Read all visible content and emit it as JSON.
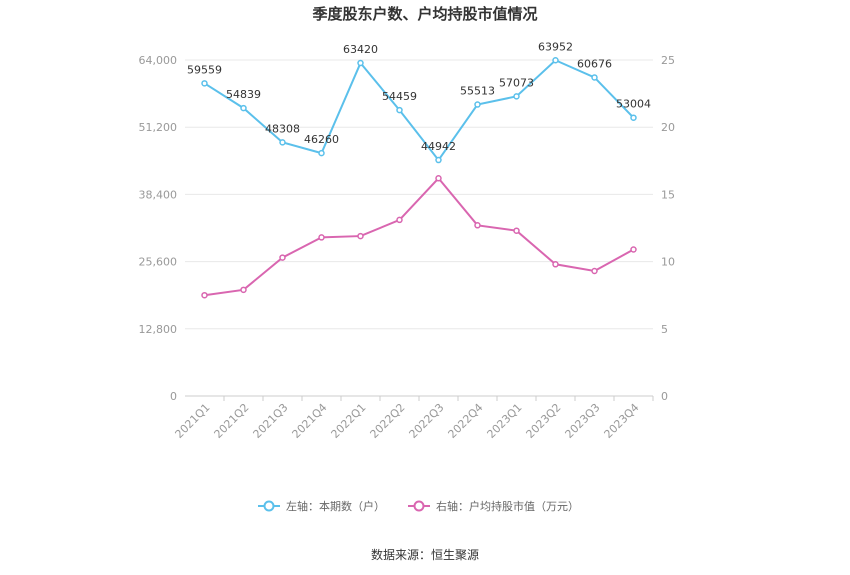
{
  "chart_data": {
    "type": "line",
    "title": "季度股东户数、户均持股市值情况",
    "categories": [
      "2021Q1",
      "2021Q2",
      "2021Q3",
      "2021Q4",
      "2022Q1",
      "2022Q2",
      "2022Q3",
      "2022Q4",
      "2023Q1",
      "2023Q2",
      "2023Q3",
      "2023Q4"
    ],
    "left_axis": {
      "ylim": [
        0,
        64000
      ],
      "ticks": [
        0,
        12800,
        25600,
        38400,
        51200,
        64000
      ],
      "tick_labels": [
        "0",
        "12,800",
        "25,600",
        "38,400",
        "51,200",
        "64,000"
      ]
    },
    "right_axis": {
      "ylim": [
        0,
        25
      ],
      "ticks": [
        0,
        5,
        10,
        15,
        20,
        25
      ],
      "tick_labels": [
        "0",
        "5",
        "10",
        "15",
        "20",
        "25"
      ]
    },
    "series": [
      {
        "name": "左轴：本期数（户）",
        "axis": "left",
        "color": "#5bc0eb",
        "values": [
          59559,
          54839,
          48308,
          46260,
          63420,
          54459,
          44942,
          55513,
          57073,
          63952,
          60676,
          53004
        ],
        "labels": [
          "59559",
          "54839",
          "48308",
          "46260",
          "63420",
          "54459",
          "44942",
          "55513",
          "57073",
          "63952",
          "60676",
          "53004"
        ]
      },
      {
        "name": "右轴：户均持股市值（万元）",
        "axis": "right",
        "color": "#d966b0",
        "values": [
          7.5,
          7.9,
          10.3,
          11.8,
          11.9,
          13.1,
          16.2,
          12.7,
          12.3,
          9.8,
          9.3,
          10.9
        ]
      }
    ],
    "grid": true,
    "legend": "bottom",
    "source": "数据来源：恒生聚源"
  }
}
